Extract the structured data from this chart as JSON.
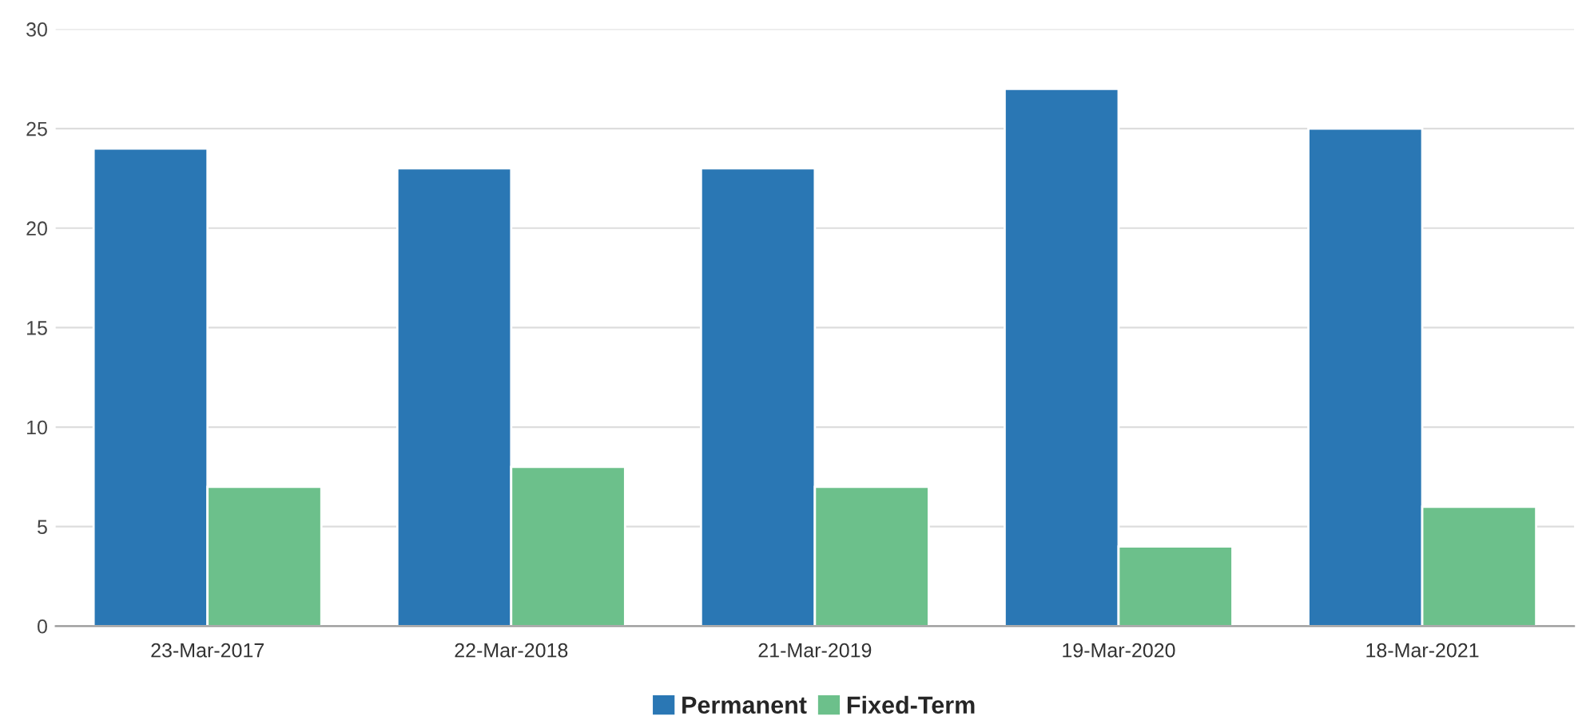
{
  "chart_data": {
    "type": "bar",
    "categories": [
      "23-Mar-2017",
      "22-Mar-2018",
      "21-Mar-2019",
      "19-Mar-2020",
      "18-Mar-2021"
    ],
    "series": [
      {
        "name": "Permanent",
        "color": "#2a77b4",
        "values": [
          24,
          23,
          23,
          27,
          25
        ]
      },
      {
        "name": "Fixed-Term",
        "color": "#6cc08b",
        "values": [
          7,
          8,
          7,
          4,
          6
        ]
      }
    ],
    "ylim": [
      0,
      30
    ],
    "yticks": [
      0,
      5,
      10,
      15,
      20,
      25,
      30
    ],
    "grid": "y",
    "legend": "bottom"
  }
}
